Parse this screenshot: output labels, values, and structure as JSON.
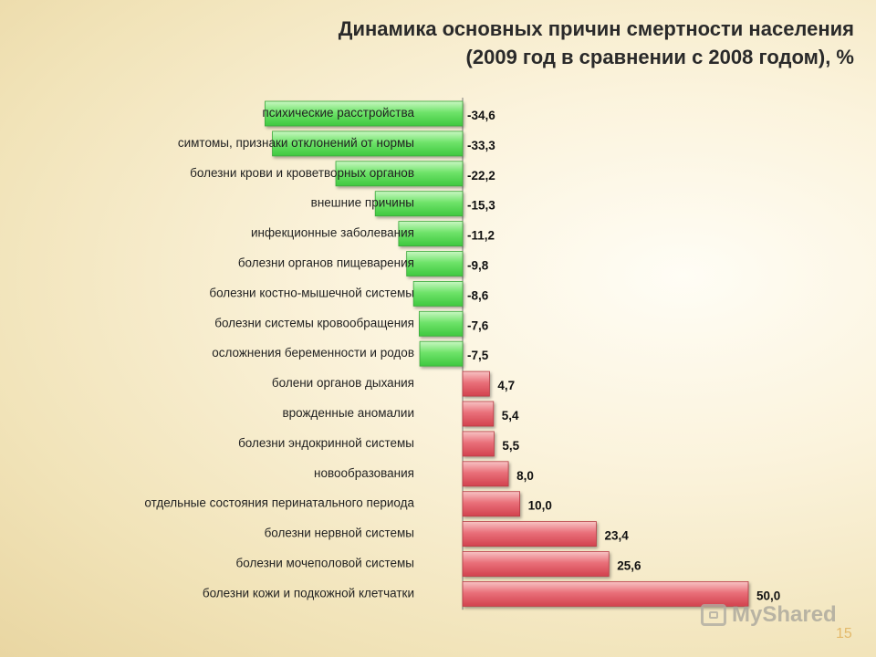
{
  "title_line1": "Динамика основных причин смертности населения",
  "title_line2": "(2009 год в сравнении с 2008 годом), %",
  "watermark": "MyShared",
  "page_number": "15",
  "colors": {
    "negative": "#5ee05e",
    "positive": "#e05560"
  },
  "chart_data": {
    "type": "bar",
    "orientation": "horizontal",
    "title": "Динамика основных причин смертности населения (2009 год в сравнении с 2008 годом), %",
    "categories": [
      "психические расстройства",
      "симтомы, признаки отклонений от нормы",
      "болезни крови и кроветворных органов",
      "внешние причины",
      "инфекционные заболевания",
      "болезни органов пищеварения",
      "болезни костно-мышечной системы",
      "болезни системы кровообращения",
      "осложнения беременности и родов",
      "болени органов дыхания",
      "врожденные аномалии",
      "болезни эндокринной системы",
      "новообразования",
      "отдельные состояния перинатального периода",
      "болезни нервной системы",
      "болезни мочеполовой системы",
      "болезни кожи и подкожной клетчатки"
    ],
    "values": [
      -34.6,
      -33.3,
      -22.2,
      -15.3,
      -11.2,
      -9.8,
      -8.6,
      -7.6,
      -7.5,
      4.7,
      5.4,
      5.5,
      8.0,
      10.0,
      23.4,
      25.6,
      50.0
    ],
    "value_labels": [
      "-34,6",
      "-33,3",
      "-22,2",
      "-15,3",
      "-11,2",
      "-9,8",
      "-8,6",
      "-7,6",
      "-7,5",
      "4,7",
      "5,4",
      "5,5",
      "8,0",
      "10,0",
      "23,4",
      "25,6",
      "50,0"
    ],
    "xlim": [
      -35,
      50
    ],
    "grid": false,
    "legend": "none"
  }
}
